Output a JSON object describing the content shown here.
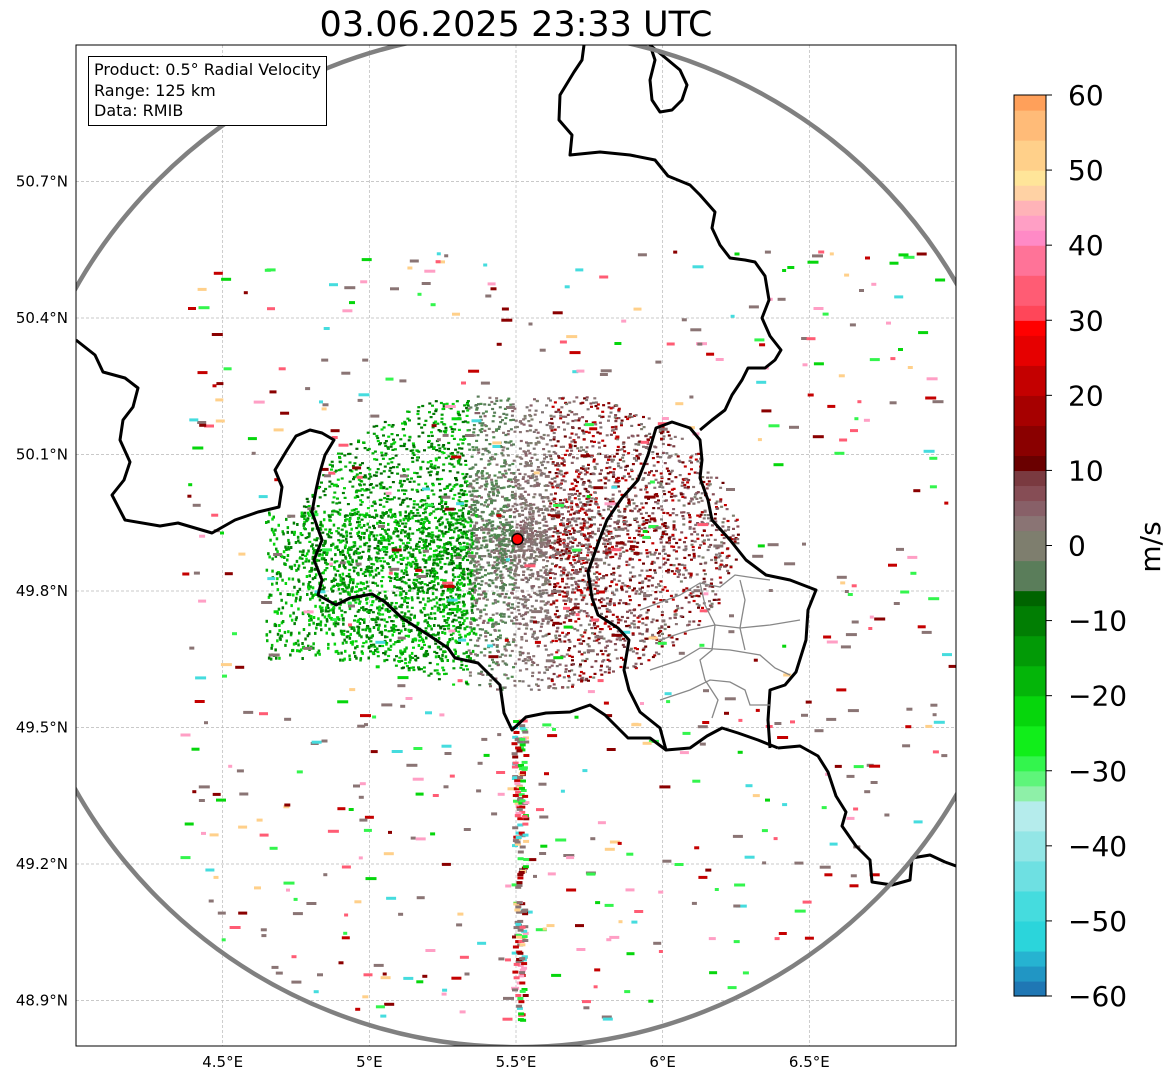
{
  "title": "03.06.2025 23:33 UTC",
  "info_box": {
    "product": "Product: 0.5° Radial Velocity",
    "range": "Range: 125 km",
    "source": "Data: RMIB"
  },
  "map_extent": {
    "lon": [
      4.0,
      7.0
    ],
    "lat": [
      48.8,
      51.0
    ]
  },
  "lon_ticks": [
    {
      "value": 4.5,
      "label": "4.5°E"
    },
    {
      "value": 5.0,
      "label": "5°E"
    },
    {
      "value": 5.5,
      "label": "5.5°E"
    },
    {
      "value": 6.0,
      "label": "6°E"
    },
    {
      "value": 6.5,
      "label": "6.5°E"
    }
  ],
  "lat_ticks": [
    {
      "value": 50.7,
      "label": "50.7°N"
    },
    {
      "value": 50.4,
      "label": "50.4°N"
    },
    {
      "value": 50.1,
      "label": "50.1°N"
    },
    {
      "value": 49.8,
      "label": "49.8°N"
    },
    {
      "value": 49.5,
      "label": "49.5°N"
    },
    {
      "value": 49.2,
      "label": "49.2°N"
    },
    {
      "value": 48.9,
      "label": "48.9°N"
    }
  ],
  "radar_site": {
    "lon": 5.505,
    "lat": 49.914,
    "marker_color": "#ff0000"
  },
  "range_ring_color": "#808080",
  "colorbar": {
    "unit_label": "m/s",
    "range": [
      -60,
      60
    ],
    "ticks": [
      {
        "value": 60,
        "label": "60"
      },
      {
        "value": 50,
        "label": "50"
      },
      {
        "value": 40,
        "label": "40"
      },
      {
        "value": 30,
        "label": "30"
      },
      {
        "value": 20,
        "label": "20"
      },
      {
        "value": 10,
        "label": "10"
      },
      {
        "value": 0,
        "label": "0"
      },
      {
        "value": -10,
        "label": "−10"
      },
      {
        "value": -20,
        "label": "−20"
      },
      {
        "value": -30,
        "label": "−30"
      },
      {
        "value": -40,
        "label": "−40"
      },
      {
        "value": -50,
        "label": "−50"
      },
      {
        "value": -60,
        "label": "−60"
      }
    ],
    "bands": [
      {
        "from": -60,
        "to": -58,
        "color": "#1f77b4"
      },
      {
        "from": -58,
        "to": -56,
        "color": "#2196c4"
      },
      {
        "from": -56,
        "to": -54,
        "color": "#26b3d1"
      },
      {
        "from": -54,
        "to": -50,
        "color": "#2bd5db"
      },
      {
        "from": -50,
        "to": -46,
        "color": "#45dcde"
      },
      {
        "from": -46,
        "to": -42,
        "color": "#6ee0e2"
      },
      {
        "from": -42,
        "to": -38,
        "color": "#93e6e6"
      },
      {
        "from": -38,
        "to": -34,
        "color": "#b5ecec"
      },
      {
        "from": -34,
        "to": -32,
        "color": "#8ef0a8"
      },
      {
        "from": -32,
        "to": -30,
        "color": "#5ef57a"
      },
      {
        "from": -30,
        "to": -28,
        "color": "#33f54d"
      },
      {
        "from": -28,
        "to": -24,
        "color": "#11ee1a"
      },
      {
        "from": -24,
        "to": -20,
        "color": "#06d60c"
      },
      {
        "from": -20,
        "to": -16,
        "color": "#04b509"
      },
      {
        "from": -16,
        "to": -12,
        "color": "#029a06"
      },
      {
        "from": -12,
        "to": -8,
        "color": "#017e03"
      },
      {
        "from": -8,
        "to": -6,
        "color": "#006400"
      },
      {
        "from": -6,
        "to": -2,
        "color": "#5a7d5a"
      },
      {
        "from": -2,
        "to": 2,
        "color": "#7e7e6e"
      },
      {
        "from": 2,
        "to": 4,
        "color": "#8a7474"
      },
      {
        "from": 4,
        "to": 6,
        "color": "#886068"
      },
      {
        "from": 6,
        "to": 8,
        "color": "#864d55"
      },
      {
        "from": 8,
        "to": 10,
        "color": "#7a3a40"
      },
      {
        "from": 10,
        "to": 12,
        "color": "#6a0000"
      },
      {
        "from": 12,
        "to": 16,
        "color": "#8a0000"
      },
      {
        "from": 16,
        "to": 20,
        "color": "#a60000"
      },
      {
        "from": 20,
        "to": 24,
        "color": "#c40000"
      },
      {
        "from": 24,
        "to": 28,
        "color": "#e60000"
      },
      {
        "from": 28,
        "to": 30,
        "color": "#ff0000"
      },
      {
        "from": 30,
        "to": 32,
        "color": "#ff4659"
      },
      {
        "from": 32,
        "to": 36,
        "color": "#ff5c74"
      },
      {
        "from": 36,
        "to": 40,
        "color": "#ff7398"
      },
      {
        "from": 40,
        "to": 42,
        "color": "#ff8ac6"
      },
      {
        "from": 42,
        "to": 44,
        "color": "#ff9fc5"
      },
      {
        "from": 44,
        "to": 46,
        "color": "#ffb3b8"
      },
      {
        "from": 46,
        "to": 48,
        "color": "#ffd2a4"
      },
      {
        "from": 48,
        "to": 50,
        "color": "#ffe599"
      },
      {
        "from": 50,
        "to": 54,
        "color": "#ffd08a"
      },
      {
        "from": 54,
        "to": 58,
        "color": "#ffbb78"
      },
      {
        "from": 58,
        "to": 60,
        "color": "#ffa05a"
      }
    ]
  }
}
